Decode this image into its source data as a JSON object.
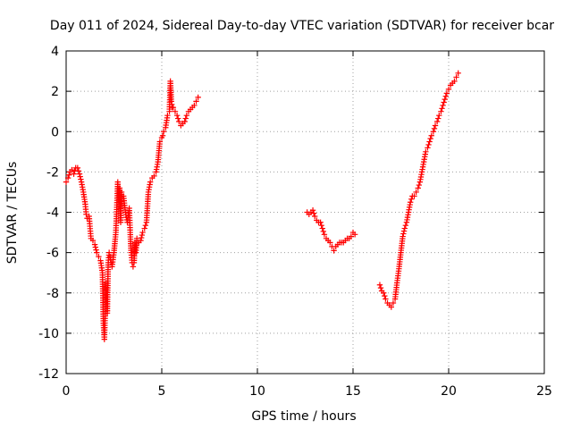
{
  "chart_data": {
    "type": "scatter",
    "title": "Day 011 of 2024, Sidereal Day-to-day VTEC variation (SDTVAR) for receiver bcar",
    "xlabel": "GPS time / hours",
    "ylabel": "SDTVAR / TECUs",
    "xlim": [
      0,
      25
    ],
    "ylim": [
      -12,
      4
    ],
    "xticks": [
      0,
      5,
      10,
      15,
      20,
      25
    ],
    "yticks": [
      -12,
      -10,
      -8,
      -6,
      -4,
      -2,
      0,
      2,
      4
    ],
    "xtick_labels": [
      "0",
      "5",
      "10",
      "15",
      "20",
      "25"
    ],
    "ytick_labels": [
      "-12",
      "-10",
      "-8",
      "-6",
      "-4",
      "-2",
      "0",
      "2",
      "4"
    ],
    "grid": true,
    "marker": "plus",
    "color": "#ff0000",
    "series": [
      {
        "x": [
          0.0,
          0.1,
          0.2,
          0.3,
          0.4,
          0.5,
          0.6,
          0.7,
          0.8,
          0.9,
          1.0,
          1.05,
          1.1,
          1.2,
          1.3,
          1.4,
          1.5,
          1.6,
          1.7,
          1.8,
          1.9,
          1.95,
          2.0,
          2.05,
          2.1,
          2.15,
          2.2,
          2.25,
          2.3,
          2.35,
          2.4,
          2.5,
          2.6,
          2.7,
          2.75,
          2.8,
          2.85,
          2.9,
          3.0,
          3.1,
          3.2,
          3.3,
          3.35,
          3.4,
          3.45,
          3.5,
          3.55,
          3.6,
          3.65,
          3.7,
          3.8,
          3.9,
          4.0,
          4.1,
          4.2,
          4.3,
          4.4,
          4.5,
          4.6,
          4.7,
          4.8,
          4.9,
          5.0,
          5.05,
          5.1,
          5.2,
          5.3,
          5.4,
          5.45,
          5.5,
          5.55,
          5.6,
          5.7,
          5.8,
          5.9,
          6.0,
          6.1,
          6.2,
          6.3,
          6.4,
          6.5,
          6.6,
          6.7,
          6.8,
          6.9
        ],
        "y": [
          -2.5,
          -2.3,
          -2.0,
          -1.9,
          -2.1,
          -1.8,
          -1.8,
          -2.1,
          -2.5,
          -3.0,
          -3.6,
          -4.1,
          -4.3,
          -4.2,
          -5.3,
          -5.4,
          -5.6,
          -6.0,
          -6.2,
          -6.4,
          -7.0,
          -9.5,
          -10.3,
          -8.8,
          -7.5,
          -9.0,
          -6.5,
          -6.0,
          -6.2,
          -6.5,
          -6.7,
          -6.0,
          -5.0,
          -2.5,
          -3.5,
          -2.8,
          -4.5,
          -3.0,
          -3.2,
          -4.0,
          -4.5,
          -3.8,
          -5.0,
          -6.0,
          -6.5,
          -6.7,
          -6.5,
          -5.5,
          -6.0,
          -5.3,
          -5.5,
          -5.4,
          -5.0,
          -4.8,
          -4.5,
          -3.0,
          -2.5,
          -2.3,
          -2.2,
          -2.0,
          -1.5,
          -0.5,
          -0.3,
          -0.2,
          0.0,
          0.2,
          0.8,
          1.0,
          2.5,
          1.5,
          1.2,
          1.2,
          1.0,
          0.8,
          0.5,
          0.3,
          0.4,
          0.5,
          0.8,
          1.0,
          1.1,
          1.2,
          1.3,
          1.5,
          1.7
        ]
      },
      {
        "x": [
          12.6,
          12.7,
          12.8,
          12.9,
          13.0,
          13.1,
          13.2,
          13.3,
          13.4,
          13.5,
          13.6,
          13.7,
          13.8,
          13.9,
          14.0,
          14.1,
          14.2,
          14.3,
          14.4,
          14.5,
          14.6,
          14.7,
          14.8,
          14.9,
          15.0,
          15.1
        ],
        "y": [
          -4.0,
          -4.1,
          -4.0,
          -3.9,
          -4.2,
          -4.4,
          -4.5,
          -4.5,
          -4.8,
          -5.1,
          -5.3,
          -5.4,
          -5.5,
          -5.7,
          -5.9,
          -5.7,
          -5.6,
          -5.5,
          -5.5,
          -5.5,
          -5.4,
          -5.3,
          -5.3,
          -5.2,
          -5.0,
          -5.1
        ]
      },
      {
        "x": [
          16.4,
          16.5,
          16.6,
          16.7,
          16.8,
          16.9,
          17.0,
          17.1,
          17.2,
          17.3,
          17.4,
          17.5,
          17.6,
          17.7,
          17.8,
          17.9,
          18.0,
          18.1,
          18.2,
          18.3,
          18.4,
          18.5,
          18.6,
          18.7,
          18.8,
          18.9,
          19.0,
          19.1,
          19.2,
          19.3,
          19.4,
          19.5,
          19.6,
          19.7,
          19.8,
          19.9,
          20.0,
          20.1,
          20.2,
          20.3,
          20.4,
          20.5
        ],
        "y": [
          -7.6,
          -7.9,
          -8.0,
          -8.3,
          -8.5,
          -8.6,
          -8.7,
          -8.5,
          -8.3,
          -7.5,
          -6.8,
          -6.0,
          -5.2,
          -4.8,
          -4.5,
          -4.0,
          -3.5,
          -3.2,
          -3.2,
          -3.0,
          -2.8,
          -2.5,
          -2.0,
          -1.5,
          -1.0,
          -0.8,
          -0.5,
          -0.2,
          0.0,
          0.3,
          0.5,
          0.8,
          1.0,
          1.3,
          1.6,
          1.9,
          2.1,
          2.3,
          2.4,
          2.5,
          2.7,
          2.9
        ]
      }
    ]
  }
}
